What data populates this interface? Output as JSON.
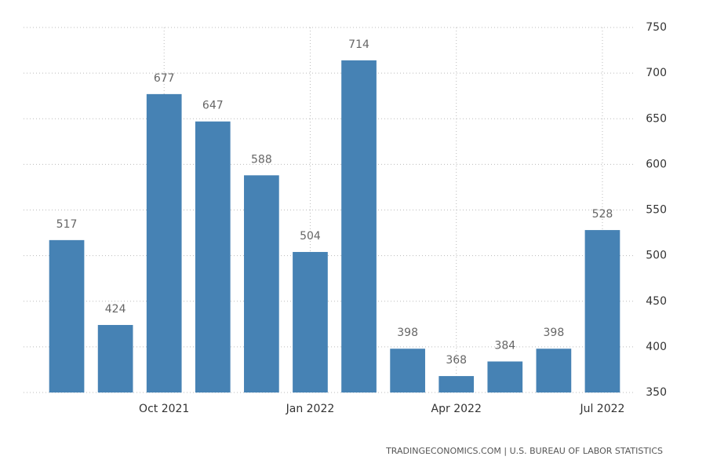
{
  "chart_data": {
    "type": "bar",
    "categories": [
      null,
      null,
      "Oct 2021",
      null,
      null,
      "Jan 2022",
      null,
      null,
      "Apr 2022",
      null,
      null,
      "Jul 2022"
    ],
    "values": [
      517,
      424,
      677,
      647,
      588,
      504,
      714,
      398,
      368,
      384,
      398,
      528
    ],
    "color": "#4682b4",
    "ylim": [
      350,
      750
    ],
    "yticks": [
      350,
      400,
      450,
      500,
      550,
      600,
      650,
      700,
      750
    ],
    "y_axis_side": "right",
    "grid": true,
    "source": "TRADINGECONOMICS.COM | U.S. BUREAU OF LABOR STATISTICS"
  }
}
